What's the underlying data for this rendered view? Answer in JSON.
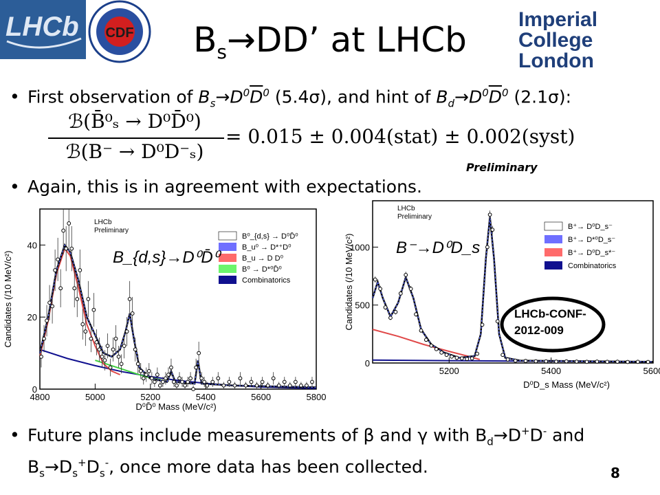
{
  "slide": {
    "title_pre": "B",
    "title_sub": "s",
    "title_post": "→DD’ at LHCb",
    "logos": {
      "ic_line1": "Imperial College",
      "ic_line2": "London",
      "lhcb": "LHCb",
      "cdf": "CDF"
    },
    "bullet1": {
      "pre": "First observation of ",
      "b1": "B",
      "s1": "s",
      "mid1": "→D",
      "sup0a": "0",
      "dbar": "D",
      "sup0b": "0",
      "sig1": " (5.4σ), and hint of ",
      "b2": "B",
      "s2": "d",
      "mid2": "→D",
      "sup0c": "0",
      "dbar2": "D",
      "sup0d": "0",
      "sig2": " (2.1σ):"
    },
    "formula": {
      "num": "ℬ(B̄⁰ₛ → D⁰D̄⁰)",
      "den": "ℬ(B⁻ → D⁰D⁻ₛ)",
      "rhs": "= 0.015 ± 0.004(stat) ± 0.002(syst)"
    },
    "preliminary_label": "Preliminary",
    "bullet2": "Again, this is in agreement with expectations.",
    "bullet3": {
      "line1": "Future plans include measurements of β and γ with B",
      "sub_d": "d",
      "l1b": "→D",
      "sup_plus": "+",
      "l1c": "D",
      "sup_minus": "-",
      "l1d": " and",
      "l2a": "B",
      "l2s": "s",
      "l2b": "→D",
      "l2s2": "s",
      "l2sup": "+",
      "l2c": "D",
      "l2s3": "s",
      "l2sup2": "-",
      "l2d": ", once more data has been collected."
    },
    "page_number": "8",
    "conf_note": {
      "line1": "LHCb-CONF-",
      "line2": "2012-009"
    }
  },
  "chart_data": [
    {
      "type": "line",
      "title": "",
      "overlay_label": "B_{d,s}→D⁰D̄⁰",
      "xlabel": "D⁰D̄⁰ Mass (MeV/c²)",
      "ylabel": "Candidates (/10 MeV/c²)",
      "xlim": [
        4800,
        5800
      ],
      "ylim": [
        0,
        50
      ],
      "xticks": [
        4800,
        5000,
        5200,
        5400,
        5600,
        5800
      ],
      "yticks": [
        0,
        20,
        40
      ],
      "lhcb_label": [
        "LHCb",
        "Preliminary"
      ],
      "legend": [
        "B⁰_{d,s} → D⁰D̄⁰",
        "B_u⁰ → D*⁺D⁰",
        "B_u → D D⁰",
        "B⁰ → D*⁰D̄⁰",
        "Combinatorics"
      ],
      "legend_colors": [
        "#ffffff",
        "#6f6fff",
        "#ff6b6b",
        "#6cf56c",
        "#10108f"
      ],
      "data_points": [
        {
          "x": 4805,
          "y": 9
        },
        {
          "x": 4815,
          "y": 14
        },
        {
          "x": 4825,
          "y": 19
        },
        {
          "x": 4835,
          "y": 24
        },
        {
          "x": 4845,
          "y": 23
        },
        {
          "x": 4855,
          "y": 33
        },
        {
          "x": 4865,
          "y": 36
        },
        {
          "x": 4875,
          "y": 28
        },
        {
          "x": 4885,
          "y": 44
        },
        {
          "x": 4895,
          "y": 39
        },
        {
          "x": 4905,
          "y": 46
        },
        {
          "x": 4915,
          "y": 39
        },
        {
          "x": 4925,
          "y": 28
        },
        {
          "x": 4935,
          "y": 25
        },
        {
          "x": 4945,
          "y": 33
        },
        {
          "x": 4955,
          "y": 18
        },
        {
          "x": 4965,
          "y": 16
        },
        {
          "x": 4975,
          "y": 25
        },
        {
          "x": 4985,
          "y": 14
        },
        {
          "x": 4995,
          "y": 22
        },
        {
          "x": 5005,
          "y": 13
        },
        {
          "x": 5015,
          "y": 11
        },
        {
          "x": 5025,
          "y": 9
        },
        {
          "x": 5035,
          "y": 8
        },
        {
          "x": 5045,
          "y": 12
        },
        {
          "x": 5055,
          "y": 6
        },
        {
          "x": 5065,
          "y": 11
        },
        {
          "x": 5075,
          "y": 14
        },
        {
          "x": 5085,
          "y": 9
        },
        {
          "x": 5095,
          "y": 7
        },
        {
          "x": 5105,
          "y": 12
        },
        {
          "x": 5115,
          "y": 16
        },
        {
          "x": 5125,
          "y": 25
        },
        {
          "x": 5135,
          "y": 21
        },
        {
          "x": 5145,
          "y": 11
        },
        {
          "x": 5155,
          "y": 7
        },
        {
          "x": 5165,
          "y": 5
        },
        {
          "x": 5175,
          "y": 3
        },
        {
          "x": 5185,
          "y": 4
        },
        {
          "x": 5195,
          "y": 5
        },
        {
          "x": 5205,
          "y": 3
        },
        {
          "x": 5215,
          "y": 2
        },
        {
          "x": 5225,
          "y": 4
        },
        {
          "x": 5235,
          "y": 1
        },
        {
          "x": 5245,
          "y": 2
        },
        {
          "x": 5255,
          "y": 3
        },
        {
          "x": 5265,
          "y": 4
        },
        {
          "x": 5275,
          "y": 6
        },
        {
          "x": 5285,
          "y": 2
        },
        {
          "x": 5295,
          "y": 1
        },
        {
          "x": 5305,
          "y": 3
        },
        {
          "x": 5315,
          "y": 2
        },
        {
          "x": 5325,
          "y": 1
        },
        {
          "x": 5335,
          "y": 2
        },
        {
          "x": 5345,
          "y": 3
        },
        {
          "x": 5355,
          "y": 0
        },
        {
          "x": 5365,
          "y": 6
        },
        {
          "x": 5375,
          "y": 10
        },
        {
          "x": 5385,
          "y": 3
        },
        {
          "x": 5395,
          "y": 2
        },
        {
          "x": 5405,
          "y": 1
        },
        {
          "x": 5425,
          "y": 2
        },
        {
          "x": 5445,
          "y": 3
        },
        {
          "x": 5465,
          "y": 1
        },
        {
          "x": 5485,
          "y": 2
        },
        {
          "x": 5505,
          "y": 1
        },
        {
          "x": 5525,
          "y": 3
        },
        {
          "x": 5545,
          "y": 1
        },
        {
          "x": 5565,
          "y": 2
        },
        {
          "x": 5585,
          "y": 1
        },
        {
          "x": 5605,
          "y": 2
        },
        {
          "x": 5625,
          "y": 1
        },
        {
          "x": 5645,
          "y": 3
        },
        {
          "x": 5665,
          "y": 1
        },
        {
          "x": 5685,
          "y": 2
        },
        {
          "x": 5705,
          "y": 1
        },
        {
          "x": 5725,
          "y": 2
        },
        {
          "x": 5745,
          "y": 1
        },
        {
          "x": 5765,
          "y": 1
        },
        {
          "x": 5785,
          "y": 2
        }
      ],
      "fit_total": [
        {
          "x": 4800,
          "y": 10
        },
        {
          "x": 4830,
          "y": 20
        },
        {
          "x": 4860,
          "y": 33
        },
        {
          "x": 4890,
          "y": 40
        },
        {
          "x": 4910,
          "y": 38
        },
        {
          "x": 4940,
          "y": 30
        },
        {
          "x": 4970,
          "y": 20
        },
        {
          "x": 5000,
          "y": 15
        },
        {
          "x": 5030,
          "y": 10
        },
        {
          "x": 5060,
          "y": 9
        },
        {
          "x": 5090,
          "y": 11
        },
        {
          "x": 5110,
          "y": 16
        },
        {
          "x": 5125,
          "y": 21
        },
        {
          "x": 5140,
          "y": 14
        },
        {
          "x": 5160,
          "y": 6
        },
        {
          "x": 5200,
          "y": 3
        },
        {
          "x": 5260,
          "y": 2
        },
        {
          "x": 5275,
          "y": 5
        },
        {
          "x": 5290,
          "y": 2
        },
        {
          "x": 5360,
          "y": 1.5
        },
        {
          "x": 5372,
          "y": 8
        },
        {
          "x": 5385,
          "y": 1.5
        },
        {
          "x": 5500,
          "y": 1
        },
        {
          "x": 5800,
          "y": 0.5
        }
      ],
      "fit_red": [
        {
          "x": 4800,
          "y": 9
        },
        {
          "x": 4830,
          "y": 19
        },
        {
          "x": 4860,
          "y": 32
        },
        {
          "x": 4890,
          "y": 39
        },
        {
          "x": 4910,
          "y": 37
        },
        {
          "x": 4940,
          "y": 28
        },
        {
          "x": 4970,
          "y": 18
        },
        {
          "x": 5000,
          "y": 12
        },
        {
          "x": 5030,
          "y": 7
        },
        {
          "x": 5060,
          "y": 5
        },
        {
          "x": 5090,
          "y": 4
        }
      ],
      "fit_green": [
        {
          "x": 5000,
          "y": 8
        },
        {
          "x": 5060,
          "y": 6.5
        },
        {
          "x": 5120,
          "y": 5
        },
        {
          "x": 5180,
          "y": 3.5
        },
        {
          "x": 5240,
          "y": 2.5
        }
      ],
      "fit_combinatoric": [
        {
          "x": 4800,
          "y": 11
        },
        {
          "x": 4900,
          "y": 8.5
        },
        {
          "x": 5000,
          "y": 6.5
        },
        {
          "x": 5100,
          "y": 4.8
        },
        {
          "x": 5200,
          "y": 3.5
        },
        {
          "x": 5300,
          "y": 2.4
        },
        {
          "x": 5400,
          "y": 1.6
        },
        {
          "x": 5500,
          "y": 1.0
        },
        {
          "x": 5600,
          "y": 0.6
        },
        {
          "x": 5800,
          "y": 0.2
        }
      ]
    },
    {
      "type": "line",
      "title": "",
      "overlay_label": "B⁻→D⁰D_s",
      "xlabel": "D⁰D_s Mass (MeV/c²)",
      "ylabel": "Candidates (/10 MeV/c²)",
      "xlim": [
        5050,
        5600
      ],
      "ylim": [
        0,
        1400
      ],
      "xticks": [
        5200,
        5400,
        5600
      ],
      "yticks": [
        0,
        500,
        1000
      ],
      "lhcb_label": [
        "LHCb",
        "Preliminary"
      ],
      "legend": [
        "B⁺→ D⁰D_s⁻",
        "B⁺→ D*⁰D_s⁻",
        "B⁺→ D⁰D_s*⁻",
        "Combinatorics"
      ],
      "legend_colors": [
        "#ffffff",
        "#6f6fff",
        "#ff6b6b",
        "#10108f"
      ],
      "data_points": [
        {
          "x": 5055,
          "y": 720
        },
        {
          "x": 5065,
          "y": 640
        },
        {
          "x": 5075,
          "y": 480
        },
        {
          "x": 5085,
          "y": 390
        },
        {
          "x": 5095,
          "y": 440
        },
        {
          "x": 5105,
          "y": 600
        },
        {
          "x": 5115,
          "y": 760
        },
        {
          "x": 5125,
          "y": 640
        },
        {
          "x": 5135,
          "y": 420
        },
        {
          "x": 5145,
          "y": 280
        },
        {
          "x": 5155,
          "y": 200
        },
        {
          "x": 5165,
          "y": 150
        },
        {
          "x": 5175,
          "y": 120
        },
        {
          "x": 5185,
          "y": 90
        },
        {
          "x": 5195,
          "y": 70
        },
        {
          "x": 5205,
          "y": 55
        },
        {
          "x": 5215,
          "y": 45
        },
        {
          "x": 5225,
          "y": 40
        },
        {
          "x": 5235,
          "y": 35
        },
        {
          "x": 5245,
          "y": 40
        },
        {
          "x": 5255,
          "y": 80
        },
        {
          "x": 5265,
          "y": 330
        },
        {
          "x": 5275,
          "y": 1000
        },
        {
          "x": 5280,
          "y": 1280
        },
        {
          "x": 5285,
          "y": 1150
        },
        {
          "x": 5295,
          "y": 360
        },
        {
          "x": 5305,
          "y": 70
        },
        {
          "x": 5315,
          "y": 30
        },
        {
          "x": 5330,
          "y": 20
        },
        {
          "x": 5350,
          "y": 18
        },
        {
          "x": 5370,
          "y": 15
        },
        {
          "x": 5390,
          "y": 14
        },
        {
          "x": 5410,
          "y": 12
        },
        {
          "x": 5430,
          "y": 14
        },
        {
          "x": 5450,
          "y": 12
        },
        {
          "x": 5470,
          "y": 10
        },
        {
          "x": 5490,
          "y": 12
        },
        {
          "x": 5510,
          "y": 10
        },
        {
          "x": 5530,
          "y": 11
        },
        {
          "x": 5550,
          "y": 9
        },
        {
          "x": 5570,
          "y": 10
        },
        {
          "x": 5590,
          "y": 9
        }
      ],
      "fit_total": [
        {
          "x": 5050,
          "y": 560
        },
        {
          "x": 5060,
          "y": 700
        },
        {
          "x": 5070,
          "y": 560
        },
        {
          "x": 5085,
          "y": 400
        },
        {
          "x": 5100,
          "y": 520
        },
        {
          "x": 5115,
          "y": 740
        },
        {
          "x": 5130,
          "y": 560
        },
        {
          "x": 5145,
          "y": 290
        },
        {
          "x": 5165,
          "y": 160
        },
        {
          "x": 5190,
          "y": 90
        },
        {
          "x": 5220,
          "y": 45
        },
        {
          "x": 5250,
          "y": 60
        },
        {
          "x": 5262,
          "y": 250
        },
        {
          "x": 5272,
          "y": 900
        },
        {
          "x": 5280,
          "y": 1260
        },
        {
          "x": 5288,
          "y": 900
        },
        {
          "x": 5298,
          "y": 250
        },
        {
          "x": 5310,
          "y": 45
        },
        {
          "x": 5340,
          "y": 20
        },
        {
          "x": 5600,
          "y": 10
        }
      ],
      "fit_red": [
        {
          "x": 5050,
          "y": 290
        },
        {
          "x": 5100,
          "y": 230
        },
        {
          "x": 5150,
          "y": 160
        },
        {
          "x": 5200,
          "y": 100
        },
        {
          "x": 5240,
          "y": 55
        },
        {
          "x": 5260,
          "y": 30
        }
      ],
      "fit_combinatoric": [
        {
          "x": 5050,
          "y": 25
        },
        {
          "x": 5200,
          "y": 20
        },
        {
          "x": 5400,
          "y": 15
        },
        {
          "x": 5600,
          "y": 10
        }
      ]
    }
  ]
}
